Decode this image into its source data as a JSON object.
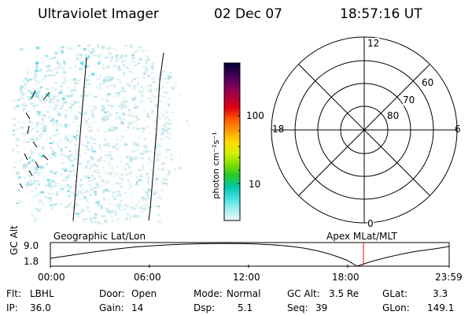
{
  "header": {
    "instrument": "Ultraviolet Imager",
    "date": "02 Dec 07",
    "time": "18:57:16 UT"
  },
  "colorbar": {
    "label": "photon cm⁻²s⁻¹",
    "ticks": [
      "100",
      "10"
    ],
    "scale": "log",
    "colors": [
      "#000033",
      "#3a0050",
      "#7a0060",
      "#b0003a",
      "#e00010",
      "#ff5a00",
      "#ff9a00",
      "#ffd800",
      "#d8f000",
      "#80e000",
      "#28c828",
      "#00c8a8",
      "#40e0e0",
      "#a0f0f0",
      "#f0f8f8"
    ]
  },
  "polar": {
    "mlt_labels": {
      "top": "12",
      "bottom": "0",
      "left": "18",
      "right": "6"
    },
    "lat_labels": [
      "60",
      "70",
      "80"
    ]
  },
  "altplot": {
    "left_label": "Geographic Lat/Lon",
    "right_label": "Apex MLat/MLT",
    "y_axis_label": "GC Alt",
    "y_ticks": [
      "9.0",
      "1.8"
    ],
    "x_ticks": [
      "00:00",
      "06:00",
      "12:00",
      "18:00",
      "23:59"
    ],
    "current_time_marker": "18:57"
  },
  "status": {
    "flt_label": "Flt:",
    "flt_value": "LBHL",
    "ip_label": "IP:",
    "ip_value": "36.0",
    "door_label": "Door:",
    "door_value": "Open",
    "gain_label": "Gain:",
    "gain_value": "14",
    "mode_label": "Mode:",
    "mode_value": "Normal",
    "dsp_label": "Dsp:",
    "dsp_value": "5.1",
    "gcalt_label": "GC Alt:",
    "gcalt_value": "3.5 Re",
    "seq_label": "Seq:",
    "seq_value": "39",
    "glat_label": "GLat:",
    "glat_value": "3.3",
    "glon_label": "GLon:",
    "glon_value": "149.1"
  }
}
